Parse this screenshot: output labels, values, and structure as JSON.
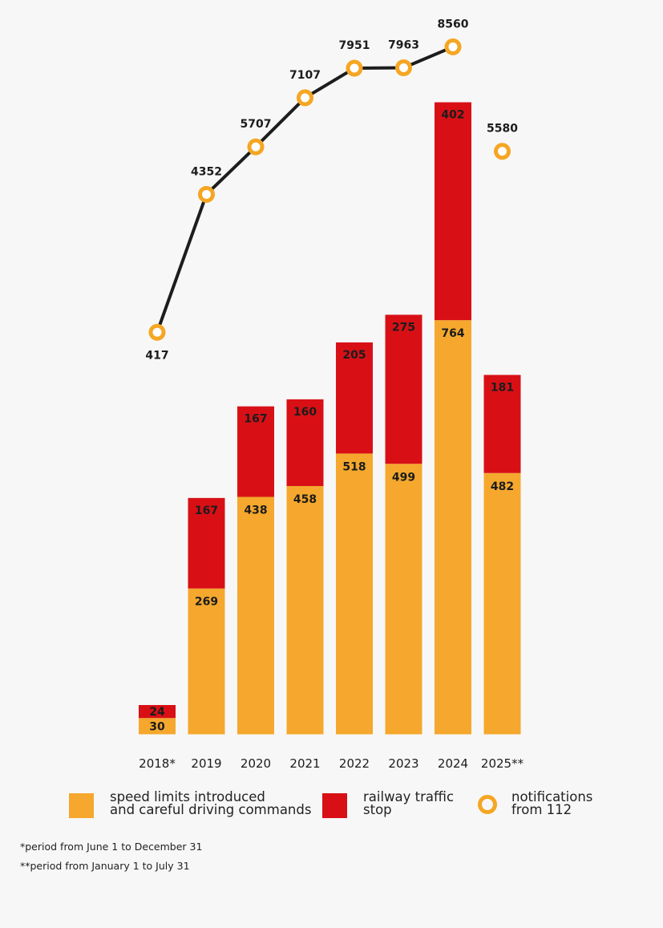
{
  "colors": {
    "speed": "#f5a82d",
    "stop": "#d81016",
    "line": "#1d1d1d",
    "marker": "#f5a623",
    "text": "#1c1c1c"
  },
  "chart_data": {
    "type": "bar",
    "categories": [
      "2018*",
      "2019",
      "2020",
      "2021",
      "2022",
      "2023",
      "2024",
      "2025**"
    ],
    "series": [
      {
        "name": "speed limits introduced and careful driving commands",
        "values": [
          30,
          269,
          438,
          458,
          518,
          499,
          764,
          482
        ],
        "stack": "bars"
      },
      {
        "name": "railway traffic stop",
        "values": [
          24,
          167,
          167,
          160,
          205,
          275,
          402,
          181
        ],
        "stack": "bars"
      },
      {
        "name": "notifications from 112",
        "values": [
          417,
          4352,
          5707,
          7107,
          7951,
          7963,
          8560,
          5580
        ],
        "type": "line-markers"
      }
    ],
    "xlabel": "",
    "ylabel": "",
    "line_connected_through": "2024",
    "grid": false,
    "legend_position": "bottom"
  },
  "legend": {
    "speed_label": "speed limits introduced\nand careful driving commands",
    "stop_label": "railway traffic\nstop",
    "notif_label": "notifications\nfrom 112"
  },
  "footnotes": {
    "note1": "*period from June 1 to December 31",
    "note2": "**period from January 1 to July 31"
  }
}
